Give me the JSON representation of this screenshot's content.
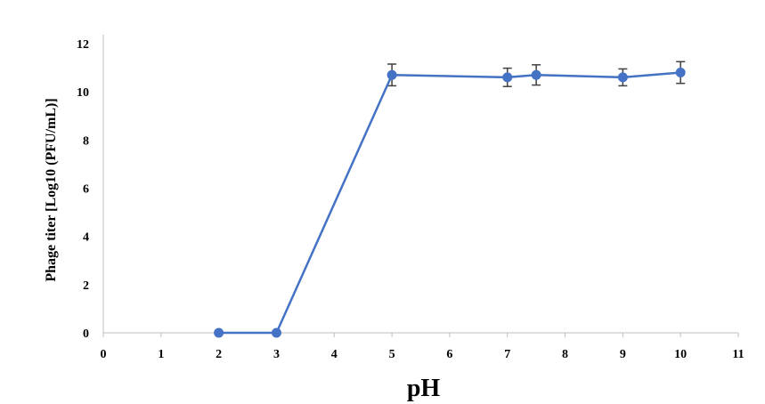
{
  "chart_data": {
    "type": "line",
    "title": "",
    "xlabel": "pH",
    "ylabel": "Phage titer [Log10 (PFU/mL)]",
    "xlim": [
      0,
      11
    ],
    "ylim": [
      0,
      12
    ],
    "x_ticks": [
      0,
      1,
      2,
      3,
      4,
      5,
      6,
      7,
      8,
      9,
      10,
      11
    ],
    "y_ticks": [
      0,
      2,
      4,
      6,
      8,
      10,
      12
    ],
    "grid": false,
    "legend": "none",
    "series": [
      {
        "x": [
          2,
          3,
          5,
          7,
          7.5,
          9,
          10
        ],
        "y": [
          0,
          0,
          10.7,
          10.6,
          10.7,
          10.6,
          10.8
        ],
        "error": [
          0,
          0,
          0.45,
          0.38,
          0.42,
          0.35,
          0.45
        ],
        "color": "#4472C4"
      }
    ]
  }
}
